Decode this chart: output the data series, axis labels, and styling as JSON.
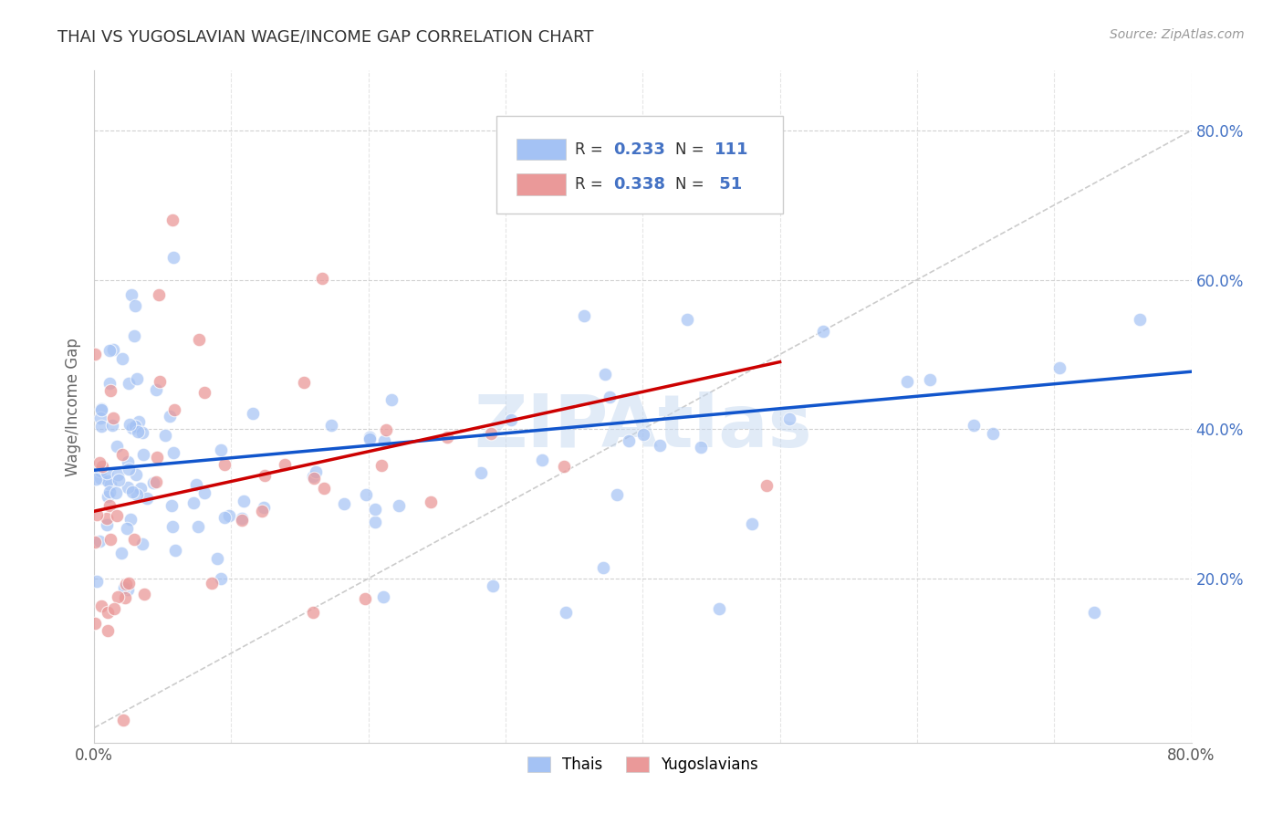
{
  "title": "THAI VS YUGOSLAVIAN WAGE/INCOME GAP CORRELATION CHART",
  "source": "Source: ZipAtlas.com",
  "ylabel": "Wage/Income Gap",
  "xlim": [
    0.0,
    0.8
  ],
  "ylim": [
    -0.02,
    0.88
  ],
  "thai_color": "#a4c2f4",
  "yugoslav_color": "#ea9999",
  "thai_line_color": "#1155cc",
  "yugoslav_line_color": "#cc0000",
  "diagonal_color": "#cccccc",
  "R_thai": 0.233,
  "N_thai": 111,
  "R_yugoslav": 0.338,
  "N_yugoslav": 51,
  "legend_label_thai": "Thais",
  "legend_label_yugoslav": "Yugoslavians",
  "watermark": "ZIPAtlas",
  "thai_intercept": 0.345,
  "thai_slope": 0.165,
  "yugo_intercept": 0.29,
  "yugo_slope": 0.4
}
